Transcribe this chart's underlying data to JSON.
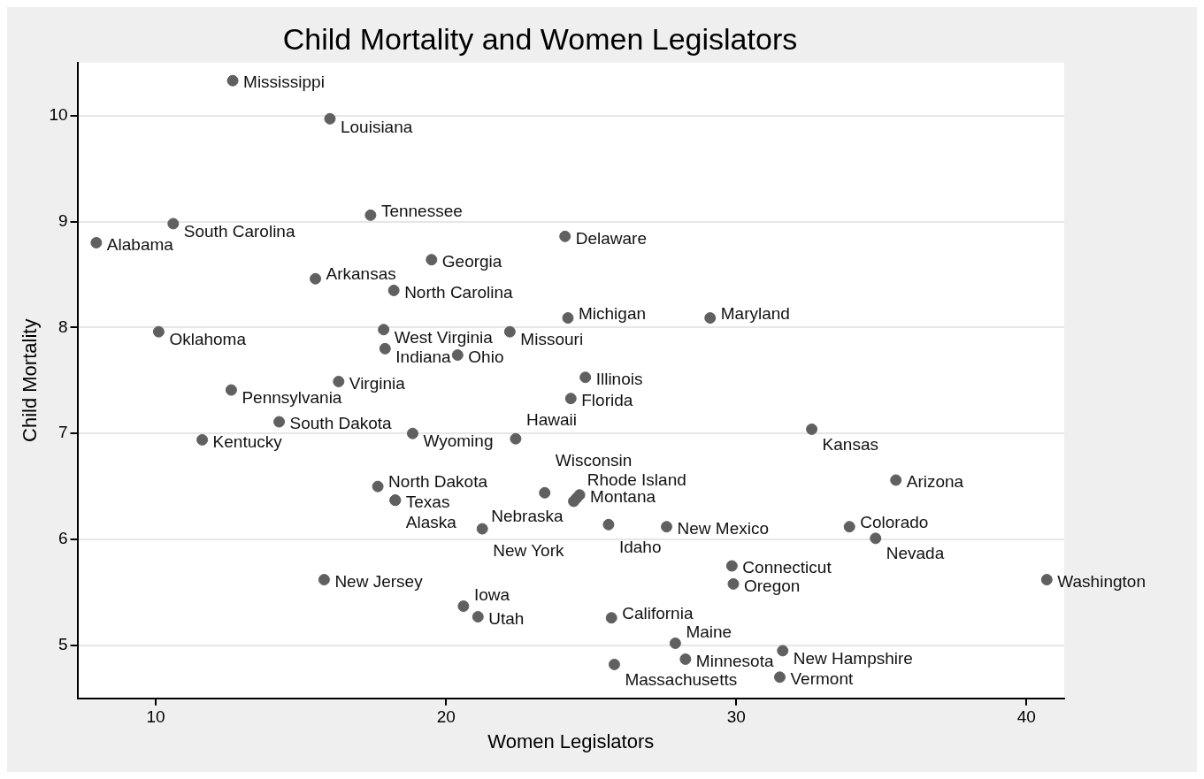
{
  "chart_data": {
    "type": "scatter",
    "title": "Child Mortality and Women Legislators",
    "xlabel": "Women Legislators",
    "ylabel": "Child Mortality",
    "x": [
      12.65,
      16.0,
      17.4,
      10.6,
      7.95,
      24.1,
      19.5,
      15.5,
      18.2,
      24.2,
      29.1,
      10.1,
      17.85,
      22.2,
      17.9,
      20.4,
      24.8,
      16.3,
      12.6,
      24.3,
      14.25,
      11.6,
      18.85,
      22.4,
      32.6,
      35.5,
      17.65,
      18.25,
      18.25,
      23.4,
      24.6,
      24.5,
      24.4,
      21.25,
      25.6,
      27.6,
      33.9,
      34.8,
      29.85,
      29.9,
      15.8,
      40.7,
      20.6,
      21.1,
      25.7,
      27.9,
      28.25,
      25.8,
      31.6,
      31.5
    ],
    "values": [
      10.33,
      9.97,
      9.06,
      8.98,
      8.8,
      8.86,
      8.64,
      8.46,
      8.35,
      8.09,
      8.09,
      7.96,
      7.98,
      7.96,
      7.8,
      7.74,
      7.53,
      7.49,
      7.41,
      7.33,
      7.11,
      6.94,
      7.0,
      6.95,
      7.04,
      6.56,
      6.5,
      6.37,
      6.37,
      6.44,
      6.42,
      6.39,
      6.36,
      6.1,
      6.14,
      6.12,
      6.12,
      6.01,
      5.75,
      5.58,
      5.62,
      5.62,
      5.37,
      5.27,
      5.26,
      5.02,
      4.87,
      4.82,
      4.95,
      4.7
    ],
    "value_labels": [
      "Mississippi",
      "Louisiana",
      "Tennessee",
      "South Carolina",
      "Alabama",
      "Delaware",
      "Georgia",
      "Arkansas",
      "North Carolina",
      "Michigan",
      "Maryland",
      "Oklahoma",
      "West Virginia",
      "Missouri",
      "Indiana",
      "Ohio",
      "Illinois",
      "Virginia",
      "Pennsylvania",
      "Florida",
      "South Dakota",
      "Kentucky",
      "Wyoming",
      "Hawaii",
      "Kansas",
      "Arizona",
      "North Dakota",
      "Texas",
      "Alaska",
      "Wisconsin",
      "Montana",
      "Rhode Island",
      "Nebraska",
      "New York",
      "Idaho",
      "New Mexico",
      "Colorado",
      "Nevada",
      "Connecticut",
      "Oregon",
      "New Jersey",
      "Washington",
      "Iowa",
      "Utah",
      "California",
      "Maine",
      "Minnesota",
      "Massachusetts",
      "New Hampshire",
      "Vermont"
    ],
    "color": "#606060",
    "marker": "circle",
    "xlim": [
      7.3,
      41.3
    ],
    "xticks": [
      10,
      20,
      30,
      40
    ],
    "ylim": [
      4.5,
      10.5
    ],
    "yticks": [
      5,
      6,
      7,
      8,
      9,
      10
    ],
    "grid": "y",
    "legend": false
  }
}
